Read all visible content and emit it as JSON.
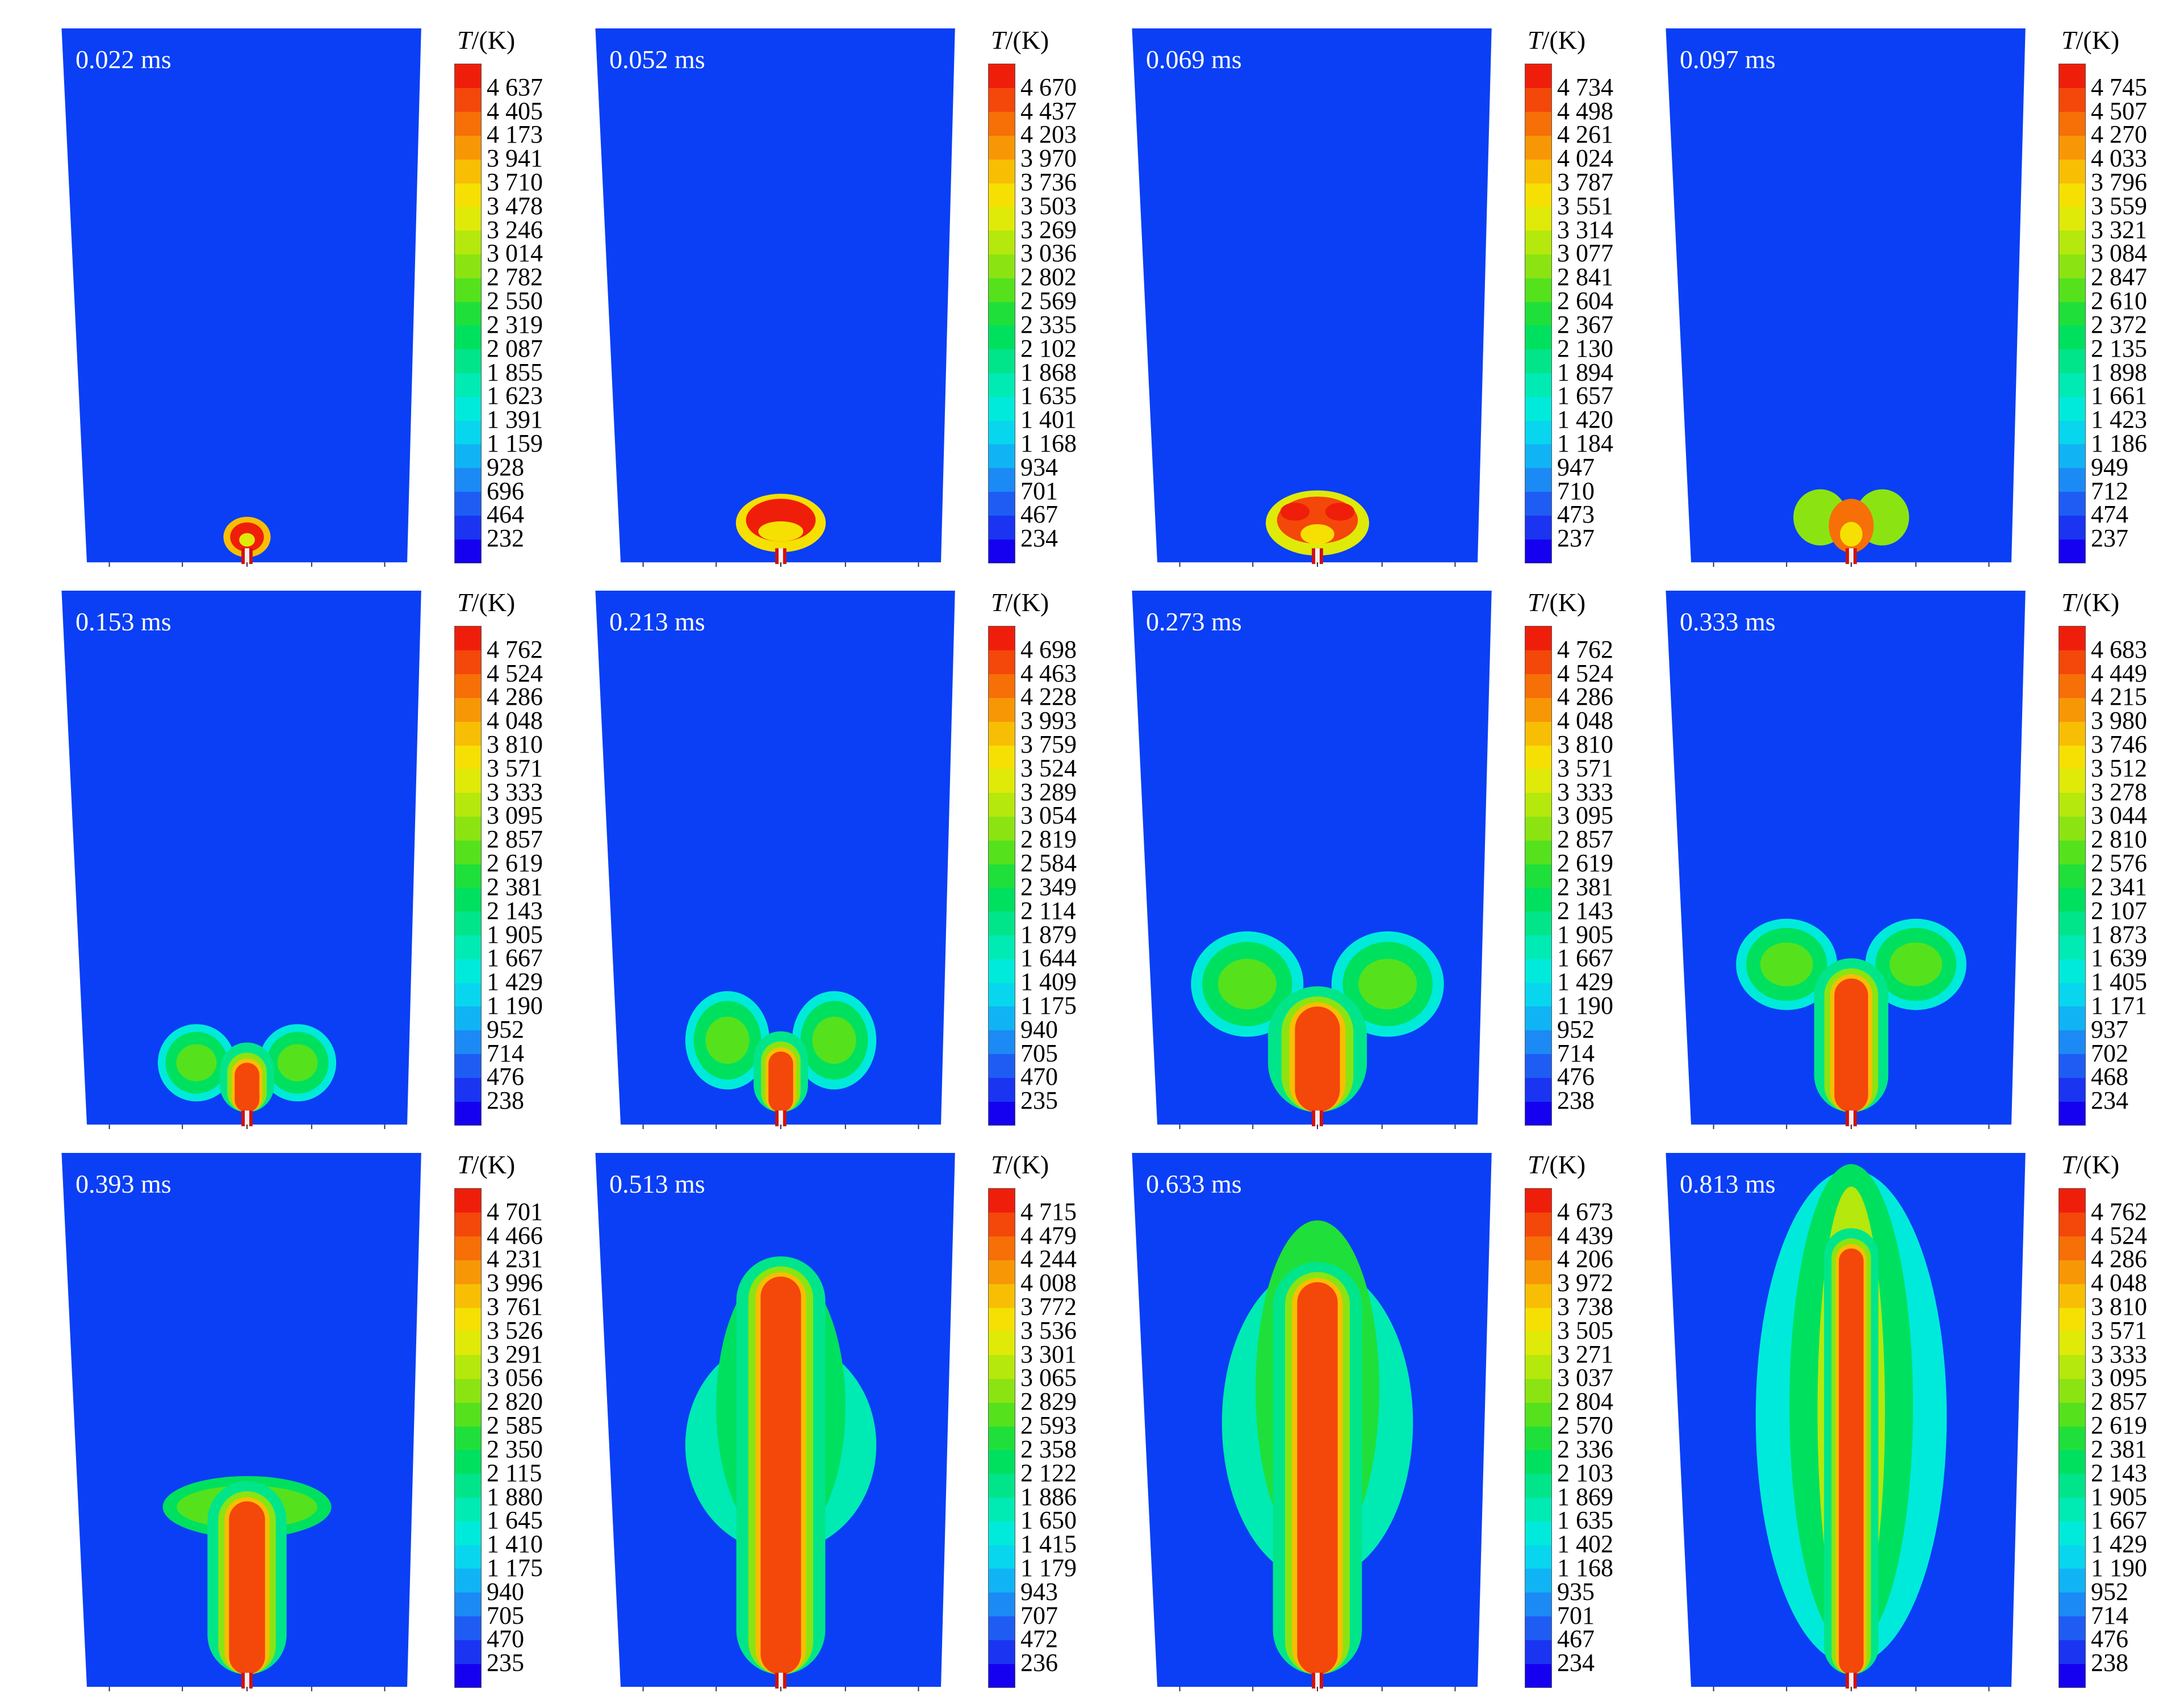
{
  "colorbar_title_T": "T",
  "colorbar_title_unit": "/(K)",
  "colors": {
    "background_field": "#0a3ff5",
    "scale": [
      "#1500f0",
      "#1a34f2",
      "#1f5cf4",
      "#1b8af5",
      "#10b4f5",
      "#08d6ef",
      "#00eadb",
      "#00eab4",
      "#00e58a",
      "#00e05f",
      "#1fe03a",
      "#55e21d",
      "#8be412",
      "#b5e80c",
      "#dfea08",
      "#f6e003",
      "#f8be04",
      "#f89705",
      "#f66f07",
      "#f4470a",
      "#ef1e0b"
    ]
  },
  "panels": [
    {
      "time": "0.022 ms",
      "ticks": [
        "4 637",
        "4 405",
        "4 173",
        "3 941",
        "3 710",
        "3 478",
        "3 246",
        "3 014",
        "2 782",
        "2 550",
        "2 319",
        "2 087",
        "1 855",
        "1 623",
        "1 391",
        "1 159",
        "928",
        "696",
        "464",
        "232"
      ]
    },
    {
      "time": "0.052 ms",
      "ticks": [
        "4 670",
        "4 437",
        "4 203",
        "3 970",
        "3 736",
        "3 503",
        "3 269",
        "3 036",
        "2 802",
        "2 569",
        "2 335",
        "2 102",
        "1 868",
        "1 635",
        "1 401",
        "1 168",
        "934",
        "701",
        "467",
        "234"
      ]
    },
    {
      "time": "0.069 ms",
      "ticks": [
        "4 734",
        "4 498",
        "4 261",
        "4 024",
        "3 787",
        "3 551",
        "3 314",
        "3 077",
        "2 841",
        "2 604",
        "2 367",
        "2 130",
        "1 894",
        "1 657",
        "1 420",
        "1 184",
        "947",
        "710",
        "473",
        "237"
      ]
    },
    {
      "time": "0.097 ms",
      "ticks": [
        "4 745",
        "4 507",
        "4 270",
        "4 033",
        "3 796",
        "3 559",
        "3 321",
        "3 084",
        "2 847",
        "2 610",
        "2 372",
        "2 135",
        "1 898",
        "1 661",
        "1 423",
        "1 186",
        "949",
        "712",
        "474",
        "237"
      ]
    },
    {
      "time": "0.153 ms",
      "ticks": [
        "4 762",
        "4 524",
        "4 286",
        "4 048",
        "3 810",
        "3 571",
        "3 333",
        "3 095",
        "2 857",
        "2 619",
        "2 381",
        "2 143",
        "1 905",
        "1 667",
        "1 429",
        "1 190",
        "952",
        "714",
        "476",
        "238"
      ]
    },
    {
      "time": "0.213 ms",
      "ticks": [
        "4 698",
        "4 463",
        "4 228",
        "3 993",
        "3 759",
        "3 524",
        "3 289",
        "3 054",
        "2 819",
        "2 584",
        "2 349",
        "2 114",
        "1 879",
        "1 644",
        "1 409",
        "1 175",
        "940",
        "705",
        "470",
        "235"
      ]
    },
    {
      "time": "0.273 ms",
      "ticks": [
        "4 762",
        "4 524",
        "4 286",
        "4 048",
        "3 810",
        "3 571",
        "3 333",
        "3 095",
        "2 857",
        "2 619",
        "2 381",
        "2 143",
        "1 905",
        "1 667",
        "1 429",
        "1 190",
        "952",
        "714",
        "476",
        "238"
      ]
    },
    {
      "time": "0.333 ms",
      "ticks": [
        "4 683",
        "4 449",
        "4 215",
        "3 980",
        "3 746",
        "3 512",
        "3 278",
        "3 044",
        "2 810",
        "2 576",
        "2 341",
        "2 107",
        "1 873",
        "1 639",
        "1 405",
        "1 171",
        "937",
        "702",
        "468",
        "234"
      ]
    },
    {
      "time": "0.393 ms",
      "ticks": [
        "4 701",
        "4 466",
        "4 231",
        "3 996",
        "3 761",
        "3 526",
        "3 291",
        "3 056",
        "2 820",
        "2 585",
        "2 350",
        "2 115",
        "1 880",
        "1 645",
        "1 410",
        "1 175",
        "940",
        "705",
        "470",
        "235"
      ]
    },
    {
      "time": "0.513 ms",
      "ticks": [
        "4 715",
        "4 479",
        "4 244",
        "4 008",
        "3 772",
        "3 536",
        "3 301",
        "3 065",
        "2 829",
        "2 593",
        "2 358",
        "2 122",
        "1 886",
        "1 650",
        "1 415",
        "1 179",
        "943",
        "707",
        "472",
        "236"
      ]
    },
    {
      "time": "0.633 ms",
      "ticks": [
        "4 673",
        "4 439",
        "4 206",
        "3 972",
        "3 738",
        "3 505",
        "3 271",
        "3 037",
        "2 804",
        "2 570",
        "2 336",
        "2 103",
        "1 869",
        "1 635",
        "1 402",
        "1 168",
        "935",
        "701",
        "467",
        "234"
      ]
    },
    {
      "time": "0.813 ms",
      "ticks": [
        "4 762",
        "4 524",
        "4 286",
        "4 048",
        "3 810",
        "3 571",
        "3 333",
        "3 095",
        "2 857",
        "2 619",
        "2 381",
        "2 143",
        "1 905",
        "1 667",
        "1 429",
        "1 190",
        "952",
        "714",
        "476",
        "238"
      ]
    }
  ]
}
